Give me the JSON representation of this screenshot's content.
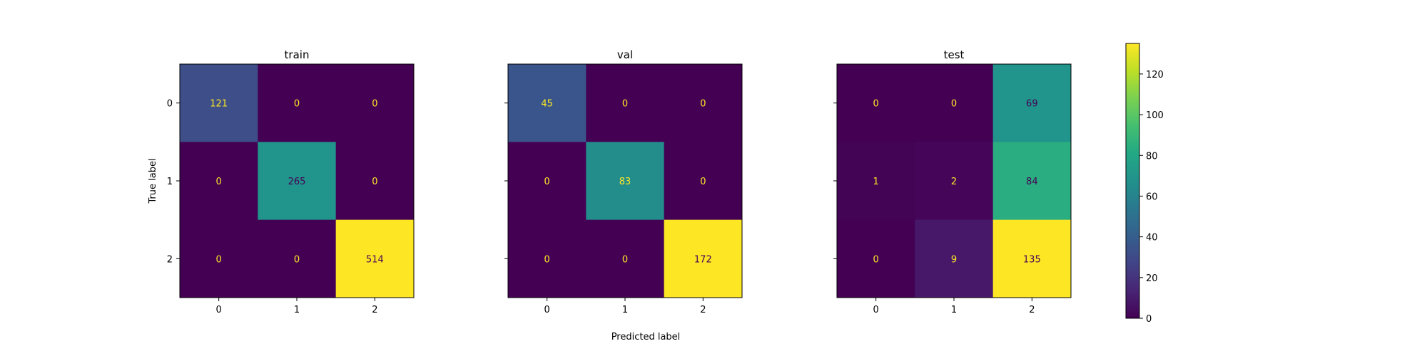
{
  "chart_data": [
    {
      "type": "heatmap",
      "title": "train",
      "xlabel": "",
      "ylabel": "True label",
      "x_ticks": [
        "0",
        "1",
        "2"
      ],
      "y_ticks": [
        "0",
        "1",
        "2"
      ],
      "values": [
        [
          121,
          0,
          0
        ],
        [
          0,
          265,
          0
        ],
        [
          0,
          0,
          514
        ]
      ]
    },
    {
      "type": "heatmap",
      "title": "val",
      "xlabel": "Predicted label",
      "ylabel": "",
      "x_ticks": [
        "0",
        "1",
        "2"
      ],
      "y_ticks": [
        "",
        "",
        ""
      ],
      "values": [
        [
          45,
          0,
          0
        ],
        [
          0,
          83,
          0
        ],
        [
          0,
          0,
          172
        ]
      ]
    },
    {
      "type": "heatmap",
      "title": "test",
      "xlabel": "",
      "ylabel": "",
      "x_ticks": [
        "0",
        "1",
        "2"
      ],
      "y_ticks": [
        "",
        "",
        ""
      ],
      "values": [
        [
          0,
          0,
          69
        ],
        [
          1,
          2,
          84
        ],
        [
          0,
          9,
          135
        ]
      ]
    }
  ],
  "colorbar": {
    "colormap": "viridis",
    "vmin": 0,
    "vmax": 135,
    "ticks": [
      0,
      20,
      40,
      60,
      80,
      100,
      120
    ]
  },
  "colors": {
    "text_on_dark": "#fde725",
    "text_on_light": "#440154"
  }
}
